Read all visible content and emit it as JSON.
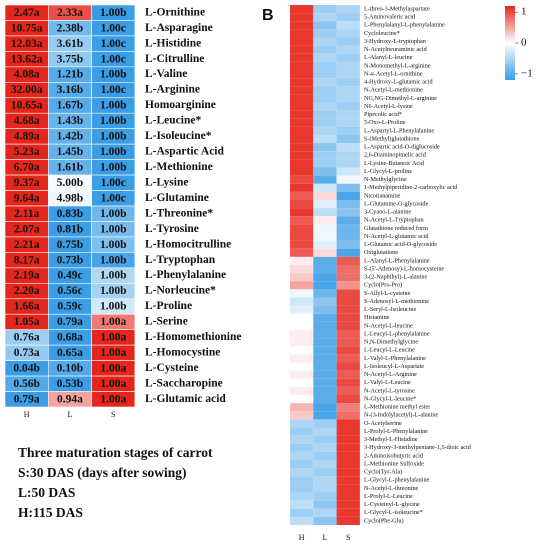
{
  "chart_data": [
    {
      "type": "heatmap",
      "panel": "A",
      "scale": "row",
      "colors": [
        "#3a9de6",
        "#ffffff",
        "#e6261c"
      ],
      "columns": [
        "H",
        "L",
        "S"
      ],
      "rows": [
        "L-Ornithine",
        "L-Asparagine",
        "L-Histidine",
        "L-Citrulline",
        "L-Valine",
        "L-Arginine",
        "Homoarginine",
        "L-Leucine*",
        "L-Isoleucine*",
        "L-Aspartic Acid",
        "L-Methionine",
        "L-Lysine",
        "L-Glutamine",
        "L-Threonine*",
        "L-Tyrosine",
        "L-Homocitrulline",
        "L-Tryptophan",
        "L-Phenylalanine",
        "L-Norleucine*",
        "L-Proline",
        "L-Serine",
        "L-Homomethionine",
        "L-Homocystine",
        "L-Cysteine",
        "L-Saccharopine",
        "L-Glutamic acid"
      ],
      "values": [
        [
          2.47,
          2.33,
          1
        ],
        [
          10.75,
          2.38,
          1
        ],
        [
          12.03,
          3.61,
          1
        ],
        [
          13.62,
          3.75,
          1
        ],
        [
          4.08,
          1.21,
          1
        ],
        [
          32,
          3.16,
          1
        ],
        [
          10.65,
          1.67,
          1
        ],
        [
          4.68,
          1.43,
          1
        ],
        [
          4.89,
          1.42,
          1
        ],
        [
          5.23,
          1.45,
          1
        ],
        [
          6.7,
          1.61,
          1
        ],
        [
          9.37,
          5,
          1
        ],
        [
          9.64,
          4.98,
          1
        ],
        [
          2.11,
          0.83,
          1
        ],
        [
          2.07,
          0.81,
          1
        ],
        [
          2.21,
          0.75,
          1
        ],
        [
          8.17,
          0.73,
          1
        ],
        [
          2.19,
          0.49,
          1
        ],
        [
          2.2,
          0.56,
          1
        ],
        [
          1.66,
          0.59,
          1
        ],
        [
          1.05,
          0.79,
          1
        ],
        [
          0.76,
          0.68,
          1
        ],
        [
          0.73,
          0.65,
          1
        ],
        [
          0.04,
          0.1,
          1
        ],
        [
          0.56,
          0.53,
          1
        ],
        [
          0.79,
          0.94,
          1
        ]
      ],
      "value_labels": [
        [
          "2.47a",
          "2.33a",
          "1.00b"
        ],
        [
          "10.75a",
          "2.38b",
          "1.00c"
        ],
        [
          "12.03a",
          "3.61b",
          "1.00c"
        ],
        [
          "13.62a",
          "3.75b",
          "1.00c"
        ],
        [
          "4.08a",
          "1.21b",
          "1.00b"
        ],
        [
          "32.00a",
          "3.16b",
          "1.00c"
        ],
        [
          "10.65a",
          "1.67b",
          "1.00b"
        ],
        [
          "4.68a",
          "1.43b",
          "1.00b"
        ],
        [
          "4.89a",
          "1.42b",
          "1.00b"
        ],
        [
          "5.23a",
          "1.45b",
          "1.00b"
        ],
        [
          "6.70a",
          "1.61b",
          "1.00b"
        ],
        [
          "9.37a",
          "5.00b",
          "1.00c"
        ],
        [
          "9.64a",
          "4.98b",
          "1.00c"
        ],
        [
          "2.11a",
          "0.83b",
          "1.00b"
        ],
        [
          "2.07a",
          "0.81b",
          "1.00b"
        ],
        [
          "2.21a",
          "0.75b",
          "1.00b"
        ],
        [
          "8.17a",
          "0.73b",
          "1.00b"
        ],
        [
          "2.19a",
          "0.49c",
          "1.00b"
        ],
        [
          "2.20a",
          "0.56c",
          "1.00b"
        ],
        [
          "1.66a",
          "0.59c",
          "1.00b"
        ],
        [
          "1.05a",
          "0.79a",
          "1.00a"
        ],
        [
          "0.76a",
          "0.68a",
          "1.00a"
        ],
        [
          "0.73a",
          "0.65a",
          "1.00a"
        ],
        [
          "0.04b",
          "0.10b",
          "1.00a"
        ],
        [
          "0.56b",
          "0.53b",
          "1.00a"
        ],
        [
          "0.79a",
          "0.94a",
          "1.00a"
        ]
      ],
      "annotations": [
        "Three maturation stages of carrot",
        "S:30 DAS (days after sowing)",
        "L:50 DAS",
        "H:115 DAS"
      ]
    },
    {
      "type": "heatmap",
      "panel": "B",
      "scale": "fixed",
      "colors": [
        "#3a9de6",
        "#ffffff",
        "#e6261c"
      ],
      "clim": [
        -1.2,
        1.2
      ],
      "cticks": [
        1,
        0,
        {
          "value": -1,
          "label": "−1"
        }
      ],
      "columns": [
        "H",
        "L",
        "S"
      ],
      "rows": [
        "L-threo-3-Methylaspartate",
        "5-Aminovaleric acid",
        "L-Phenylalanyl-L-phenylalanine",
        "Cycloleucine*",
        "3-Hydroxy-L-tryptophan",
        "N-Acetylneuraminic acid",
        "L-Alanyl-L-leucine",
        "N-Monomethyl-L-arginine",
        "N-α-Acetyl-L-ornithine",
        "4-Hydroxy-L-glutamic acid",
        "N-Acetyl-L-methionine",
        "NG,NG-Dimethyl-L-arginine",
        "N6-Acetyl-L-lysine",
        "Pipecolic acid*",
        "5-Oxo-L-Proline",
        "L-Aspartyl-L-Phenylalanine",
        "S-(Methyl)glutathione",
        "L-Aspartic acid-O-diglucoside",
        "2,6-Diaminopimelic acid",
        "L-Lysine-Butanoic Acid",
        "L-Glycyl-L-proline",
        "N-Methylglycine",
        "1-Methylpiperidine-2-carboxylic acid",
        "Nicotianamine",
        "L-Glutamine-O-glycoside",
        "3-Cyano-L-alanine",
        "N-Acetyl-L-Tryptophan",
        "Glutathione reduced form",
        "N-Acetyl-L-glutamic acid",
        "L-Glutamic acid-O-glycoside",
        "Oxiglutatione",
        "L-Alanyl-L-Phenylalanine",
        "S-(5'-Adenosy)-L-homocysteine",
        "3-(2-Naphthyl)-L-alanine",
        "Cyclo(Pro-Pro)",
        "S-Allyl-L-cysteine",
        "S-Adenosyl-L-methionine",
        "L-Seryl-L-Isoleucine",
        "Histamine",
        "N-Acetyl-L-leucine",
        "L-Leucyl-L-phenylalanine",
        "N,N-Dimethylglycine",
        "L-Leucyl-L-Leucine",
        "L-Valyl-L-Phenylalanine",
        "L-Isoleucyl-L-Aspartate",
        "N-Acetyl-L-Arginine",
        "L-Valyl-L-Leucine",
        "N-Acetyl-L-tyrosine",
        "N-Glycyl-L-leucine*",
        "L-Methionine methyl ester",
        "N-(3-Indolylacetyl)-L-alanine",
        "O-Acetylserine",
        "L-Prolyl-L-Phenylalanine",
        "3-Methyl-L-Histidine",
        "3-Hydroxy-3-methylpentane-1,5-dioic acid",
        "2-Aminoisobutyric acid",
        "L-Methionine Sulfoxide",
        "Cyclo(Tyr-Ala)",
        "L-Glycyl-L-phenylalanine",
        "N-Acetyl-L-threonine",
        "L-Prolyl-L-Leucine",
        "L-Cysteinyl-L-glycine",
        "L-Glycyl-L-isoleucine*",
        "Cyclo(Phe-Glu)"
      ],
      "values": [
        [
          1.1,
          -0.6,
          -0.5
        ],
        [
          1.1,
          -0.5,
          -0.6
        ],
        [
          1.1,
          -0.7,
          -0.4
        ],
        [
          1.1,
          -0.6,
          -0.5
        ],
        [
          1.1,
          -0.5,
          -0.6
        ],
        [
          1.1,
          -0.6,
          -0.5
        ],
        [
          1.1,
          -0.5,
          -0.6
        ],
        [
          1.1,
          -0.6,
          -0.5
        ],
        [
          1.1,
          -0.6,
          -0.5
        ],
        [
          1.1,
          -0.5,
          -0.6
        ],
        [
          1.1,
          -0.6,
          -0.5
        ],
        [
          1.1,
          -0.6,
          -0.5
        ],
        [
          1.1,
          -0.5,
          -0.6
        ],
        [
          1.1,
          -0.6,
          -0.5
        ],
        [
          1.1,
          -0.6,
          -0.5
        ],
        [
          1.1,
          -0.5,
          -0.6
        ],
        [
          1.1,
          -0.4,
          -0.7
        ],
        [
          1.1,
          -0.7,
          -0.4
        ],
        [
          1.1,
          -0.6,
          -0.5
        ],
        [
          1.1,
          -0.6,
          -0.5
        ],
        [
          1.1,
          -0.8,
          -0.3
        ],
        [
          1.0,
          -1.0,
          -0.1
        ],
        [
          1.1,
          -0.3,
          -0.8
        ],
        [
          0.9,
          0.2,
          -1.1
        ],
        [
          1.0,
          -0.2,
          -0.8
        ],
        [
          1.1,
          -0.4,
          -0.7
        ],
        [
          0.9,
          0.1,
          -1.0
        ],
        [
          1.0,
          -0.1,
          -0.9
        ],
        [
          1.0,
          -0.1,
          -0.9
        ],
        [
          1.0,
          -0.2,
          -0.8
        ],
        [
          0.9,
          0.2,
          -1.1
        ],
        [
          0.1,
          -1.0,
          0.9
        ],
        [
          0.2,
          -1.0,
          0.8
        ],
        [
          0.3,
          -1.1,
          0.8
        ],
        [
          0.5,
          -1.1,
          0.6
        ],
        [
          -0.1,
          -0.9,
          1.0
        ],
        [
          -0.3,
          -0.7,
          1.0
        ],
        [
          -0.2,
          -0.8,
          1.0
        ],
        [
          0.0,
          -1.0,
          1.0
        ],
        [
          0.0,
          -1.0,
          1.0
        ],
        [
          0.1,
          -1.0,
          0.9
        ],
        [
          0.1,
          -1.0,
          0.9
        ],
        [
          0.0,
          -1.0,
          1.0
        ],
        [
          0.1,
          -1.0,
          0.9
        ],
        [
          0.0,
          -1.0,
          1.0
        ],
        [
          0.1,
          -1.0,
          0.9
        ],
        [
          0.0,
          -1.0,
          1.0
        ],
        [
          0.1,
          -1.0,
          0.9
        ],
        [
          0.0,
          -1.0,
          1.0
        ],
        [
          0.4,
          -1.1,
          0.7
        ],
        [
          0.3,
          -1.1,
          0.8
        ],
        [
          -0.5,
          -0.6,
          1.1
        ],
        [
          -0.6,
          -0.5,
          1.1
        ],
        [
          -0.5,
          -0.6,
          1.1
        ],
        [
          -0.6,
          -0.5,
          1.1
        ],
        [
          -0.5,
          -0.6,
          1.1
        ],
        [
          -0.6,
          -0.5,
          1.1
        ],
        [
          -0.5,
          -0.6,
          1.1
        ],
        [
          -0.6,
          -0.5,
          1.1
        ],
        [
          -0.6,
          -0.5,
          1.1
        ],
        [
          -0.5,
          -0.6,
          1.1
        ],
        [
          -0.4,
          -0.7,
          1.1
        ],
        [
          -0.6,
          -0.5,
          1.1
        ],
        [
          -0.4,
          -0.7,
          1.1
        ]
      ]
    }
  ]
}
